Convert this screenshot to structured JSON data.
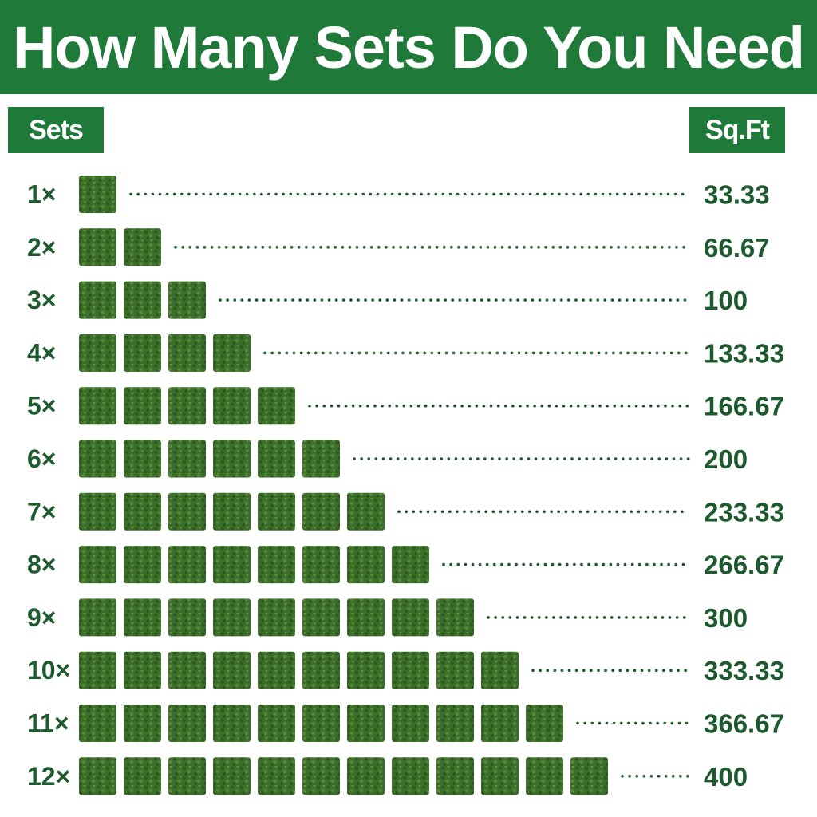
{
  "title": "How Many Sets Do You Need",
  "headers": {
    "sets": "Sets",
    "sqft": "Sq.Ft"
  },
  "colors": {
    "brand_green": "#1f7a3a",
    "text_green": "#1d5a2e",
    "tile_green": "#3c6e2a"
  },
  "chart_data": {
    "type": "bar",
    "title": "How Many Sets Do You Need",
    "xlabel": "Sq.Ft",
    "ylabel": "Sets",
    "categories": [
      "1×",
      "2×",
      "3×",
      "4×",
      "5×",
      "6×",
      "7×",
      "8×",
      "9×",
      "10×",
      "11×",
      "12×"
    ],
    "tile_counts": [
      1,
      2,
      3,
      4,
      5,
      6,
      7,
      8,
      9,
      10,
      11,
      12
    ],
    "values": [
      33.33,
      66.67,
      100,
      133.33,
      166.67,
      200,
      233.33,
      266.67,
      300,
      333.33,
      366.67,
      400
    ],
    "value_labels": [
      "33.33",
      "66.67",
      "100",
      "133.33",
      "166.67",
      "200",
      "233.33",
      "266.67",
      "300",
      "333.33",
      "366.67",
      "400"
    ]
  }
}
